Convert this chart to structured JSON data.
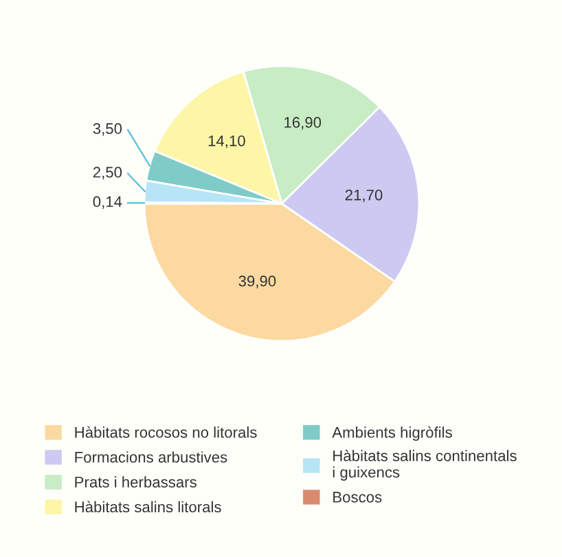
{
  "chart_data": {
    "type": "pie",
    "categories": [
      "Hàbitats rocosos no litorals",
      "Formacions arbustives",
      "Prats i herbassars",
      "Hàbitats salins litorals",
      "Ambients higròfils",
      "Hàbitats salins continentals\ni guixencs",
      "Boscos"
    ],
    "values": [
      39.9,
      21.7,
      16.9,
      14.1,
      3.5,
      2.5,
      0.14
    ],
    "value_labels": [
      "39,90",
      "21,70",
      "16,90",
      "14,10",
      "3,50",
      "2,50",
      "0,14"
    ],
    "colors": [
      "#fcd9a0",
      "#cccaf0",
      "#c8ecc4",
      "#fdf6a6",
      "#7fcbc8",
      "#b8e5f6",
      "#d98a6e"
    ],
    "legend": "bottom"
  }
}
